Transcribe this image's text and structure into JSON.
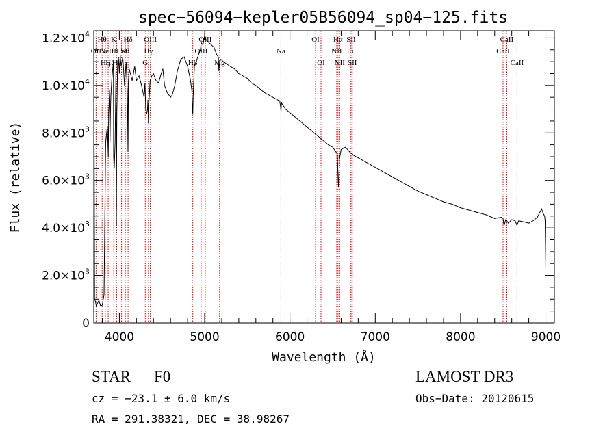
{
  "chart_data": {
    "type": "line",
    "title": "spec−56094−kepler05B56094_sp04−125.fits",
    "xlabel": "Wavelength (Å)",
    "ylabel": "Flux (relative)",
    "xlim": [
      3700,
      9100
    ],
    "ylim": [
      0,
      12300
    ],
    "x_ticks": [
      {
        "value": 4000,
        "label": "4000"
      },
      {
        "value": 5000,
        "label": "5000"
      },
      {
        "value": 6000,
        "label": "6000"
      },
      {
        "value": 7000,
        "label": "7000"
      },
      {
        "value": 8000,
        "label": "8000"
      },
      {
        "value": 9000,
        "label": "9000"
      }
    ],
    "y_ticks": [
      {
        "value": 0,
        "label": "0"
      },
      {
        "value": 2000,
        "label": "2.0×10",
        "exp": "3"
      },
      {
        "value": 4000,
        "label": "4.0×10",
        "exp": "3"
      },
      {
        "value": 6000,
        "label": "6.0×10",
        "exp": "3"
      },
      {
        "value": 8000,
        "label": "8.0×10",
        "exp": "3"
      },
      {
        "value": 10000,
        "label": "1.0×10",
        "exp": "4"
      },
      {
        "value": 12000,
        "label": "1.2×10",
        "exp": "4"
      }
    ],
    "series": [
      {
        "name": "flux",
        "x": [
          3700,
          3705,
          3710,
          3720,
          3730,
          3740,
          3760,
          3780,
          3800,
          3820,
          3830,
          3840,
          3860,
          3870,
          3875,
          3885,
          3890,
          3895,
          3900,
          3910,
          3920,
          3930,
          3933,
          3940,
          3950,
          3960,
          3965,
          3970,
          3980,
          3990,
          4000,
          4010,
          4020,
          4040,
          4060,
          4080,
          4095,
          4101,
          4107,
          4115,
          4130,
          4150,
          4180,
          4200,
          4230,
          4260,
          4290,
          4300,
          4310,
          4320,
          4330,
          4335,
          4340,
          4345,
          4350,
          4360,
          4380,
          4400,
          4430,
          4460,
          4490,
          4510,
          4530,
          4560,
          4600,
          4620,
          4650,
          4680,
          4720,
          4760,
          4800,
          4830,
          4850,
          4857,
          4861,
          4865,
          4872,
          4880,
          4900,
          4920,
          4950,
          4960,
          4980,
          5000,
          5020,
          5050,
          5080,
          5110,
          5140,
          5160,
          5167,
          5172,
          5178,
          5190,
          5220,
          5260,
          5300,
          5350,
          5400,
          5450,
          5500,
          5550,
          5600,
          5650,
          5700,
          5750,
          5800,
          5850,
          5880,
          5890,
          5895,
          5900,
          5910,
          5950,
          6000,
          6050,
          6100,
          6150,
          6200,
          6250,
          6300,
          6350,
          6400,
          6450,
          6500,
          6540,
          6555,
          6563,
          6570,
          6580,
          6600,
          6650,
          6700,
          6750,
          6800,
          6850,
          6900,
          6950,
          7000,
          7100,
          7200,
          7300,
          7400,
          7500,
          7600,
          7700,
          7800,
          7900,
          8000,
          8100,
          8200,
          8300,
          8400,
          8480,
          8498,
          8510,
          8530,
          8542,
          8560,
          8600,
          8640,
          8662,
          8680,
          8750,
          8800,
          8850,
          8900,
          8950,
          8970,
          8985,
          8992,
          9000
        ],
        "y": [
          300,
          7400,
          1000,
          900,
          700,
          800,
          950,
          700,
          750,
          1200,
          4500,
          7600,
          8300,
          7000,
          8800,
          9800,
          7600,
          8800,
          9500,
          10200,
          10600,
          11000,
          7000,
          6500,
          7600,
          10600,
          4100,
          8800,
          11000,
          11200,
          10500,
          11300,
          10800,
          11200,
          10000,
          11000,
          9500,
          7200,
          10200,
          10700,
          10500,
          10200,
          10800,
          10200,
          10400,
          10000,
          9500,
          10100,
          9000,
          8800,
          9000,
          9400,
          8400,
          9200,
          9500,
          10200,
          10400,
          10500,
          10200,
          10100,
          10500,
          10700,
          10000,
          9700,
          9500,
          9600,
          10000,
          10600,
          11100,
          11200,
          10800,
          10300,
          9800,
          9000,
          8800,
          9500,
          10200,
          10800,
          11000,
          11200,
          11500,
          11800,
          11700,
          12100,
          11900,
          11800,
          11700,
          11600,
          11300,
          11200,
          10600,
          10900,
          11000,
          11100,
          11000,
          10900,
          10800,
          10700,
          10500,
          10400,
          10300,
          10100,
          10000,
          9850,
          9700,
          9600,
          9500,
          9400,
          9350,
          9100,
          8900,
          9300,
          9200,
          9000,
          8850,
          8700,
          8550,
          8400,
          8250,
          8100,
          7950,
          7800,
          7650,
          7500,
          7400,
          7200,
          7100,
          6200,
          5700,
          6900,
          7300,
          7400,
          7200,
          7050,
          6950,
          6850,
          6750,
          6650,
          6550,
          6350,
          6150,
          5950,
          5750,
          5550,
          5400,
          5250,
          5100,
          5000,
          4850,
          4750,
          4650,
          4550,
          4400,
          4450,
          4400,
          4100,
          4350,
          4300,
          4200,
          4350,
          4300,
          4100,
          4300,
          4250,
          4200,
          4300,
          4450,
          4800,
          4600,
          4500,
          4300,
          2200
        ]
      }
    ],
    "lines": [
      {
        "w": 3727,
        "label": "OII",
        "row": 2
      },
      {
        "w": 3798,
        "label": "Hθ",
        "row": 1
      },
      {
        "w": 3835,
        "label": "Hη",
        "row": 3
      },
      {
        "w": 3869,
        "label": "NeIII",
        "row": 2
      },
      {
        "w": 3889,
        "label": "Hζ",
        "row": 3
      },
      {
        "w": 3934,
        "label": "K",
        "row": 1
      },
      {
        "w": 3968,
        "label": "Hε",
        "row": 3
      },
      {
        "w": 4026,
        "label": "HeI",
        "row": 2
      },
      {
        "w": 4070,
        "label": "SII",
        "row": 2
      },
      {
        "w": 4102,
        "label": "Hδ",
        "row": 1
      },
      {
        "w": 4304,
        "label": "G",
        "row": 3
      },
      {
        "w": 4341,
        "label": "Hγ",
        "row": 2
      },
      {
        "w": 4363,
        "label": "OIII",
        "row": 1
      },
      {
        "w": 4861,
        "label": "Hβ",
        "row": 3
      },
      {
        "w": 4959,
        "label": "OIII",
        "row": 2
      },
      {
        "w": 5007,
        "label": "OIII",
        "row": 1
      },
      {
        "w": 5175,
        "label": "Mg",
        "row": 3
      },
      {
        "w": 5894,
        "label": "Na",
        "row": 2
      },
      {
        "w": 6300,
        "label": "OI",
        "row": 1
      },
      {
        "w": 6364,
        "label": "OI",
        "row": 3
      },
      {
        "w": 6548,
        "label": "NII",
        "row": 2
      },
      {
        "w": 6563,
        "label": "Hα",
        "row": 1
      },
      {
        "w": 6583,
        "label": "NII",
        "row": 3
      },
      {
        "w": 6707,
        "label": "Li",
        "row": 2
      },
      {
        "w": 6717,
        "label": "SII",
        "row": 1
      },
      {
        "w": 6731,
        "label": "SII",
        "row": 3
      },
      {
        "w": 8498,
        "label": "CaII",
        "row": 2
      },
      {
        "w": 8542,
        "label": "CaII",
        "row": 1
      },
      {
        "w": 8662,
        "label": "CaII",
        "row": 3
      }
    ]
  },
  "info": {
    "class_label": "STAR",
    "subclass": "F0",
    "survey": "LAMOST DR3",
    "redshift": "cz = −23.1 ± 6.0 km/s",
    "obs_date": "Obs−Date: 20120615",
    "coords": "RA = 291.38321, DEC =  38.98267"
  },
  "colors": {
    "axis": "#000000",
    "spectrum": "#000000",
    "line_marker": "#cc0000"
  }
}
